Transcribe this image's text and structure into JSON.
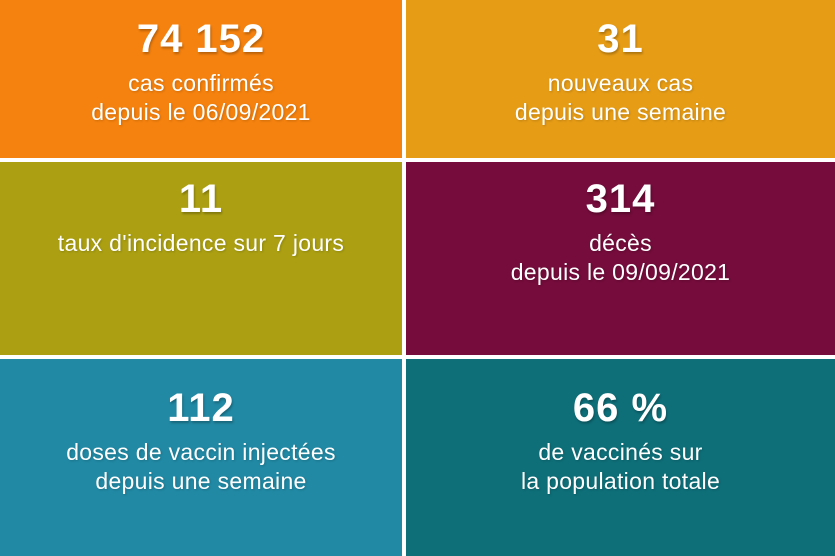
{
  "text_color": "#FFFFFF",
  "gap_color": "#FFFFFF",
  "tiles": [
    {
      "value": "74 152",
      "line1": "cas confirmés",
      "line2": "depuis le 06/09/2021",
      "bg": "#F5820E"
    },
    {
      "value": "31",
      "line1": "nouveaux cas",
      "line2": "depuis une semaine",
      "bg": "#E69C15"
    },
    {
      "value": "11",
      "line1": "taux d'incidence sur 7 jours",
      "line2": "",
      "bg": "#ACA012"
    },
    {
      "value": "314",
      "line1": "décès",
      "line2": "depuis le 09/09/2021",
      "bg": "#750C3B"
    },
    {
      "value": "112",
      "line1": "doses de vaccin injectées",
      "line2": "depuis une semaine",
      "bg": "#2189A4"
    },
    {
      "value": "66 %",
      "line1": "de vaccinés sur",
      "line2": "la population totale",
      "bg": "#0E6F79"
    }
  ],
  "chart_data": {
    "type": "table",
    "title": "",
    "rows": [
      [
        "74 152",
        "cas confirmés depuis le 06/09/2021"
      ],
      [
        "31",
        "nouveaux cas depuis une semaine"
      ],
      [
        "11",
        "taux d'incidence sur 7 jours"
      ],
      [
        "314",
        "décès depuis le 09/09/2021"
      ],
      [
        "112",
        "doses de vaccin injectées depuis une semaine"
      ],
      [
        "66 %",
        "de vaccinés sur la population totale"
      ]
    ],
    "values": [
      74152,
      31,
      11,
      314,
      112,
      66
    ],
    "layout": "2x3-grid-of-kpi-tiles",
    "colors": [
      "#F5820E",
      "#E69C15",
      "#ACA012",
      "#750C3B",
      "#2189A4",
      "#0E6F79"
    ]
  }
}
